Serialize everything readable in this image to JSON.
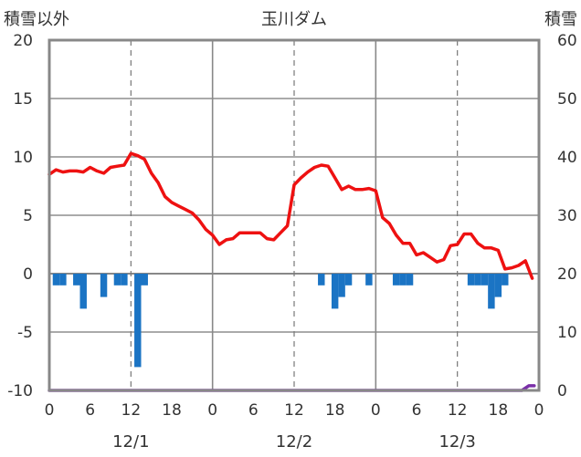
{
  "chart_data": {
    "type": "line",
    "title": "玉川ダム",
    "left_axis_label": "積雪以外",
    "right_axis_label": "積雪",
    "y_left": {
      "min": -10,
      "max": 20,
      "ticks": [
        "20",
        "15",
        "10",
        "5",
        "0",
        "-5",
        "-10"
      ]
    },
    "y_right": {
      "min": 0,
      "max": 60,
      "ticks": [
        "60",
        "50",
        "40",
        "30",
        "20",
        "10",
        "0"
      ]
    },
    "x": {
      "min": 0,
      "max": 72,
      "ticks": [
        {
          "t": 0,
          "label": "0"
        },
        {
          "t": 6,
          "label": "6"
        },
        {
          "t": 12,
          "label": "12"
        },
        {
          "t": 18,
          "label": "18"
        },
        {
          "t": 24,
          "label": "0"
        },
        {
          "t": 30,
          "label": "6"
        },
        {
          "t": 36,
          "label": "12"
        },
        {
          "t": 42,
          "label": "18"
        },
        {
          "t": 48,
          "label": "0"
        },
        {
          "t": 54,
          "label": "6"
        },
        {
          "t": 60,
          "label": "12"
        },
        {
          "t": 66,
          "label": "18"
        },
        {
          "t": 72,
          "label": "0"
        }
      ]
    },
    "day_labels": [
      {
        "t": 12,
        "label": "12/1"
      },
      {
        "t": 36,
        "label": "12/2"
      },
      {
        "t": 60,
        "label": "12/3"
      }
    ],
    "grid": true,
    "colors": {
      "temperature": "#ee1111",
      "precipitation": "#1b74c4",
      "snow": "#7a2fa8",
      "frame": "#888888",
      "grid": "#777777"
    },
    "series": [
      {
        "axis": "left",
        "kind": "line",
        "x": [
          0,
          1,
          2,
          3,
          4,
          5,
          6,
          7,
          8,
          9,
          10,
          11,
          12,
          13,
          14,
          15,
          16,
          17,
          18,
          19,
          20,
          21,
          22,
          23,
          24,
          25,
          26,
          27,
          28,
          29,
          30,
          31,
          32,
          33,
          34,
          35,
          36,
          37,
          38,
          39,
          40,
          41,
          42,
          43,
          44,
          45,
          46,
          47,
          48,
          49,
          50,
          51,
          52,
          53,
          54,
          55,
          56,
          57,
          58,
          59,
          60,
          61,
          62,
          63,
          64,
          65,
          66,
          67,
          68,
          69,
          70,
          71
        ],
        "values": [
          8.5,
          8.9,
          8.7,
          8.8,
          8.8,
          8.7,
          9.1,
          8.8,
          8.6,
          9.1,
          9.2,
          9.3,
          10.3,
          10.1,
          9.8,
          8.6,
          7.8,
          6.6,
          6.1,
          5.8,
          5.5,
          5.2,
          4.6,
          3.8,
          3.3,
          2.5,
          2.9,
          3.0,
          3.5,
          3.5,
          3.5,
          3.5,
          3.0,
          2.9,
          3.5,
          4.1,
          7.6,
          8.2,
          8.7,
          9.1,
          9.3,
          9.2,
          8.2,
          7.2,
          7.5,
          7.2,
          7.2,
          7.3,
          7.1,
          4.8,
          4.3,
          3.3,
          2.6,
          2.6,
          1.6,
          1.8,
          1.4,
          1.0,
          1.2,
          2.4,
          2.5,
          3.4,
          3.4,
          2.6,
          2.2,
          2.2,
          2.0,
          0.4,
          0.5,
          0.7,
          1.1,
          -0.4
        ]
      },
      {
        "axis": "left",
        "kind": "bar",
        "x": [
          1,
          2,
          4,
          5,
          8,
          10,
          11,
          13,
          14,
          40,
          42,
          43,
          44,
          47,
          51,
          52,
          53,
          62,
          63,
          64,
          65,
          66,
          67
        ],
        "values": [
          -1,
          -1,
          -1,
          -3,
          -2,
          -1,
          -1,
          -8,
          -1,
          -1,
          -3,
          -2,
          -1,
          -1,
          -1,
          -1,
          -1,
          -1,
          -1,
          -1,
          -3,
          -2,
          -1
        ]
      },
      {
        "axis": "right",
        "kind": "line",
        "x": [
          0,
          69.5,
          70.5,
          71.3
        ],
        "values": [
          0,
          0,
          0.8,
          0.8
        ]
      }
    ]
  }
}
